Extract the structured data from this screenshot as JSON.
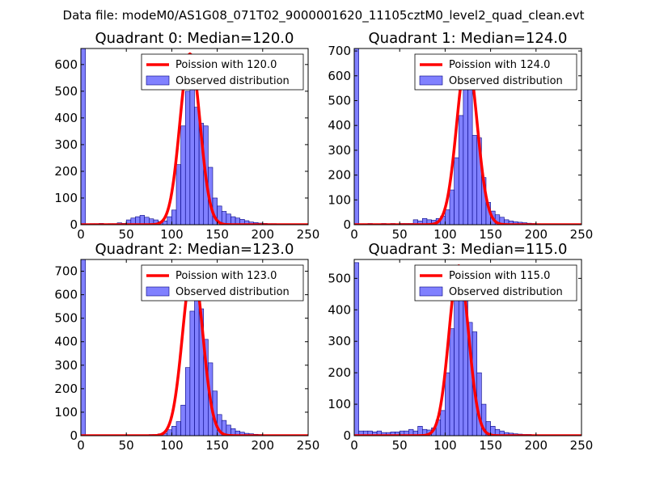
{
  "title": "Data file: modeM0/AS1G08_071T02_9000001620_11105cztM0_level2_quad_clean.evt",
  "colors": {
    "hist_fill": "#8080ff",
    "hist_edge": "#000080",
    "fit_line": "#ff0000",
    "frame": "#000000"
  },
  "chart_data": [
    {
      "type": "bar",
      "title": "Quadrant 0: Median=120.0",
      "median": 120.0,
      "xlim": [
        0,
        250
      ],
      "ylim": [
        0,
        660
      ],
      "xticks": [
        "0",
        "50",
        "100",
        "150",
        "200",
        "250"
      ],
      "yticks": [
        "0",
        "100",
        "200",
        "300",
        "400",
        "500",
        "600"
      ],
      "bin_width": 5,
      "legend": [
        "Poission with 120.0",
        "Observed distribution"
      ],
      "fit_peak": 640,
      "bins": [
        [
          0,
          660
        ],
        [
          5,
          3
        ],
        [
          10,
          4
        ],
        [
          15,
          4
        ],
        [
          20,
          5
        ],
        [
          25,
          3
        ],
        [
          30,
          4
        ],
        [
          35,
          4
        ],
        [
          40,
          7
        ],
        [
          45,
          5
        ],
        [
          50,
          18
        ],
        [
          55,
          25
        ],
        [
          60,
          30
        ],
        [
          65,
          35
        ],
        [
          70,
          28
        ],
        [
          75,
          22
        ],
        [
          80,
          18
        ],
        [
          85,
          12
        ],
        [
          90,
          14
        ],
        [
          95,
          30
        ],
        [
          100,
          55
        ],
        [
          105,
          225
        ],
        [
          110,
          370
        ],
        [
          115,
          500
        ],
        [
          120,
          575
        ],
        [
          125,
          440
        ],
        [
          130,
          380
        ],
        [
          135,
          370
        ],
        [
          140,
          215
        ],
        [
          145,
          100
        ],
        [
          150,
          70
        ],
        [
          155,
          50
        ],
        [
          160,
          40
        ],
        [
          165,
          30
        ],
        [
          170,
          25
        ],
        [
          175,
          20
        ],
        [
          180,
          15
        ],
        [
          185,
          10
        ],
        [
          190,
          8
        ],
        [
          195,
          6
        ],
        [
          200,
          5
        ],
        [
          205,
          4
        ],
        [
          210,
          4
        ]
      ]
    },
    {
      "type": "bar",
      "title": "Quadrant 1: Median=124.0",
      "median": 124.0,
      "xlim": [
        0,
        250
      ],
      "ylim": [
        0,
        710
      ],
      "xticks": [
        "0",
        "50",
        "100",
        "150",
        "200",
        "250"
      ],
      "yticks": [
        "0",
        "100",
        "200",
        "300",
        "400",
        "500",
        "600",
        "700"
      ],
      "bin_width": 5,
      "legend": [
        "Poission with 124.0",
        "Observed distribution"
      ],
      "fit_peak": 680,
      "bins": [
        [
          0,
          710
        ],
        [
          5,
          4
        ],
        [
          10,
          4
        ],
        [
          15,
          5
        ],
        [
          20,
          4
        ],
        [
          25,
          4
        ],
        [
          30,
          5
        ],
        [
          35,
          4
        ],
        [
          40,
          5
        ],
        [
          45,
          4
        ],
        [
          50,
          5
        ],
        [
          55,
          5
        ],
        [
          60,
          5
        ],
        [
          65,
          20
        ],
        [
          70,
          15
        ],
        [
          75,
          25
        ],
        [
          80,
          20
        ],
        [
          85,
          18
        ],
        [
          90,
          25
        ],
        [
          95,
          35
        ],
        [
          100,
          60
        ],
        [
          105,
          140
        ],
        [
          110,
          270
        ],
        [
          115,
          440
        ],
        [
          120,
          570
        ],
        [
          125,
          560
        ],
        [
          130,
          360
        ],
        [
          135,
          350
        ],
        [
          140,
          190
        ],
        [
          145,
          90
        ],
        [
          150,
          55
        ],
        [
          155,
          40
        ],
        [
          160,
          30
        ],
        [
          165,
          20
        ],
        [
          170,
          15
        ],
        [
          175,
          12
        ],
        [
          180,
          10
        ],
        [
          185,
          8
        ],
        [
          190,
          6
        ],
        [
          195,
          5
        ],
        [
          200,
          4
        ],
        [
          205,
          3
        ],
        [
          210,
          3
        ]
      ]
    },
    {
      "type": "bar",
      "title": "Quadrant 2: Median=123.0",
      "median": 123.0,
      "xlim": [
        0,
        250
      ],
      "ylim": [
        0,
        750
      ],
      "xticks": [
        "0",
        "50",
        "100",
        "150",
        "200",
        "250"
      ],
      "yticks": [
        "0",
        "100",
        "200",
        "300",
        "400",
        "500",
        "600",
        "700"
      ],
      "bin_width": 5,
      "legend": [
        "Poission with 123.0",
        "Observed distribution"
      ],
      "fit_peak": 720,
      "bins": [
        [
          0,
          750
        ],
        [
          5,
          3
        ],
        [
          10,
          3
        ],
        [
          15,
          3
        ],
        [
          20,
          3
        ],
        [
          25,
          3
        ],
        [
          30,
          3
        ],
        [
          35,
          3
        ],
        [
          40,
          3
        ],
        [
          45,
          3
        ],
        [
          50,
          3
        ],
        [
          55,
          3
        ],
        [
          60,
          3
        ],
        [
          65,
          3
        ],
        [
          70,
          3
        ],
        [
          75,
          5
        ],
        [
          80,
          5
        ],
        [
          85,
          8
        ],
        [
          90,
          10
        ],
        [
          95,
          25
        ],
        [
          100,
          40
        ],
        [
          105,
          60
        ],
        [
          110,
          130
        ],
        [
          115,
          290
        ],
        [
          120,
          530
        ],
        [
          125,
          580
        ],
        [
          130,
          540
        ],
        [
          135,
          410
        ],
        [
          140,
          310
        ],
        [
          145,
          190
        ],
        [
          150,
          90
        ],
        [
          155,
          65
        ],
        [
          160,
          45
        ],
        [
          165,
          30
        ],
        [
          170,
          20
        ],
        [
          175,
          15
        ],
        [
          180,
          10
        ],
        [
          185,
          8
        ],
        [
          190,
          6
        ],
        [
          195,
          5
        ],
        [
          200,
          4
        ]
      ]
    },
    {
      "type": "bar",
      "title": "Quadrant 3: Median=115.0",
      "median": 115.0,
      "xlim": [
        0,
        250
      ],
      "ylim": [
        0,
        560
      ],
      "xticks": [
        "0",
        "50",
        "100",
        "150",
        "200",
        "250"
      ],
      "yticks": [
        "0",
        "100",
        "200",
        "300",
        "400",
        "500"
      ],
      "bin_width": 5,
      "legend": [
        "Poission with 115.0",
        "Observed distribution"
      ],
      "fit_peak": 540,
      "bins": [
        [
          0,
          550
        ],
        [
          5,
          15
        ],
        [
          10,
          15
        ],
        [
          15,
          15
        ],
        [
          20,
          12
        ],
        [
          25,
          15
        ],
        [
          30,
          10
        ],
        [
          35,
          10
        ],
        [
          40,
          12
        ],
        [
          45,
          12
        ],
        [
          50,
          15
        ],
        [
          55,
          15
        ],
        [
          60,
          20
        ],
        [
          65,
          15
        ],
        [
          70,
          30
        ],
        [
          75,
          20
        ],
        [
          80,
          18
        ],
        [
          85,
          25
        ],
        [
          90,
          50
        ],
        [
          95,
          80
        ],
        [
          100,
          200
        ],
        [
          105,
          340
        ],
        [
          110,
          460
        ],
        [
          115,
          490
        ],
        [
          120,
          440
        ],
        [
          125,
          360
        ],
        [
          130,
          330
        ],
        [
          135,
          200
        ],
        [
          140,
          100
        ],
        [
          145,
          45
        ],
        [
          150,
          30
        ],
        [
          155,
          20
        ],
        [
          160,
          15
        ],
        [
          165,
          10
        ],
        [
          170,
          8
        ],
        [
          175,
          6
        ],
        [
          180,
          5
        ],
        [
          185,
          4
        ],
        [
          190,
          4
        ],
        [
          195,
          3
        ]
      ]
    }
  ]
}
